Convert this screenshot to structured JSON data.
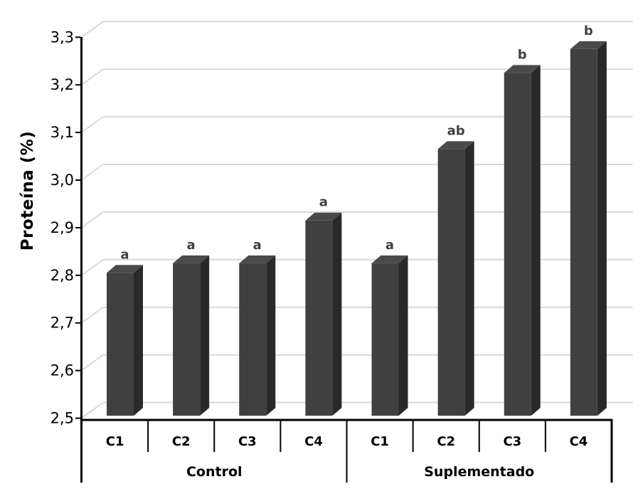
{
  "chart_data": {
    "type": "bar",
    "title": "",
    "ylabel": "Proteína (%)",
    "xlabel": "",
    "ylim": [
      2.5,
      3.3
    ],
    "y_tick_step": 0.1,
    "y_tick_labels": [
      "3,3",
      "3,2",
      "3,1",
      "3,0",
      "2,9",
      "2,8",
      "2,7",
      "2,6",
      "2,5"
    ],
    "y_tick_values": [
      3.3,
      3.2,
      3.1,
      3.0,
      2.9,
      2.8,
      2.7,
      2.6,
      2.5
    ],
    "decimal_separator": ",",
    "grid": "horizontal-3d",
    "legend": "none",
    "style": "3d-column",
    "groups": [
      {
        "label": "Control",
        "categories": [
          "C1",
          "C2",
          "C3",
          "C4"
        ],
        "values": [
          2.8,
          2.82,
          2.82,
          2.91
        ],
        "letters": [
          "a",
          "a",
          "a",
          "a"
        ]
      },
      {
        "label": "Suplementado",
        "categories": [
          "C1",
          "C2",
          "C3",
          "C4"
        ],
        "values": [
          2.82,
          3.06,
          3.22,
          3.27
        ],
        "letters": [
          "a",
          "ab",
          "b",
          "b"
        ]
      }
    ],
    "colors": {
      "bar_front": "#404040",
      "bar_top": "#4a4a4a",
      "bar_side": "#292929",
      "gridline": "#d9d9d9",
      "letter": "#3f3f3f",
      "axis": "#000000",
      "text": "#000000",
      "background": "#ffffff"
    }
  }
}
